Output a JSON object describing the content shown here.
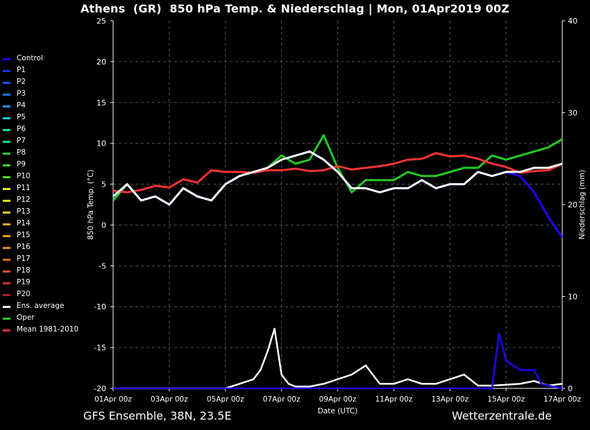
{
  "title": "Athens  (GR)  850 hPa Temp. & Niederschlag | Mon, 01Apr2019 00Z",
  "footer": {
    "left": "GFS Ensemble, 38N, 23.5E",
    "right": "Wetterzentrale.de"
  },
  "colors": {
    "control": "#2200ff",
    "ens_average": "#ffffff",
    "oper": "#22cc22",
    "mean_1981_2010": "#ff3333",
    "grid": "#555555",
    "axis": "#ffffff"
  },
  "chart_data": {
    "type": "line",
    "title": "Athens  (GR)  850 hPa Temp. & Niederschlag | Mon, 01Apr2019 00Z",
    "xlabel": "Date (UTC)",
    "ylabel": "850 hPa Temp. (°C)",
    "y2label": "Niederschlag (mm)",
    "ylim": [
      -20,
      25
    ],
    "y2lim": [
      0,
      40
    ],
    "yticks": [
      -20,
      -15,
      -10,
      -5,
      0,
      5,
      10,
      15,
      20,
      25
    ],
    "y2ticks": [
      0,
      10,
      20,
      30,
      40
    ],
    "xlim_days": [
      0,
      16
    ],
    "x_unit": "days since 01Apr 00z",
    "xticks": [
      {
        "day": 0,
        "label": "01Apr 00z"
      },
      {
        "day": 2,
        "label": "03Apr 00z"
      },
      {
        "day": 4,
        "label": "05Apr 00z"
      },
      {
        "day": 6,
        "label": "07Apr 00z"
      },
      {
        "day": 8,
        "label": "09Apr 00z"
      },
      {
        "day": 10,
        "label": "11Apr 00z"
      },
      {
        "day": 12,
        "label": "13Apr 00z"
      },
      {
        "day": 14,
        "label": "15Apr 00z"
      },
      {
        "day": 16,
        "label": "17Apr 00z"
      }
    ],
    "grid": true,
    "legend_position": "left",
    "legend": [
      {
        "name": "Control",
        "color": "#2200ff"
      },
      {
        "name": "P1",
        "color": "#1133ff"
      },
      {
        "name": "P2",
        "color": "#1155ff"
      },
      {
        "name": "P3",
        "color": "#1177ff"
      },
      {
        "name": "P4",
        "color": "#1199ff"
      },
      {
        "name": "P5",
        "color": "#11ccee"
      },
      {
        "name": "P6",
        "color": "#11ddaa"
      },
      {
        "name": "P7",
        "color": "#11dd77"
      },
      {
        "name": "P8",
        "color": "#22cc44"
      },
      {
        "name": "P9",
        "color": "#33dd22"
      },
      {
        "name": "P10",
        "color": "#55dd11"
      },
      {
        "name": "P11",
        "color": "#eeee11"
      },
      {
        "name": "P12",
        "color": "#eedd22"
      },
      {
        "name": "P13",
        "color": "#eecc22"
      },
      {
        "name": "P14",
        "color": "#eeaa22"
      },
      {
        "name": "P15",
        "color": "#ee9911"
      },
      {
        "name": "P16",
        "color": "#ee8822"
      },
      {
        "name": "P17",
        "color": "#dd6611"
      },
      {
        "name": "P18",
        "color": "#dd5522"
      },
      {
        "name": "P19",
        "color": "#cc3322"
      },
      {
        "name": "P20",
        "color": "#aa2222"
      },
      {
        "name": "Ens. average",
        "color": "#ffffff"
      },
      {
        "name": "Oper",
        "color": "#22cc22"
      },
      {
        "name": "Mean 1981-2010",
        "color": "#ff3333"
      }
    ],
    "series": [
      {
        "name": "Ens. average",
        "x": [
          0,
          0.5,
          1,
          1.5,
          2,
          2.5,
          3,
          3.5,
          4,
          4.5,
          5,
          5.5,
          6,
          6.5,
          7,
          7.5,
          8,
          8.5,
          9,
          9.5,
          10,
          10.5,
          11,
          11.5,
          12,
          12.5,
          13,
          13.5,
          14,
          14.5,
          15,
          15.5,
          16
        ],
        "values": [
          3.5,
          5.0,
          3.0,
          3.5,
          2.5,
          4.5,
          3.5,
          3.0,
          5.0,
          6.0,
          6.5,
          7.0,
          8.0,
          8.5,
          9.0,
          8.0,
          6.5,
          4.5,
          4.5,
          4.0,
          4.5,
          4.5,
          5.5,
          4.5,
          5.0,
          5.0,
          6.5,
          6.0,
          6.5,
          6.5,
          7.0,
          7.0,
          7.5
        ]
      },
      {
        "name": "Oper",
        "x": [
          0,
          0.5,
          1,
          1.5,
          2,
          2.5,
          3,
          3.5,
          4,
          4.5,
          5,
          5.5,
          6,
          6.5,
          7,
          7.5,
          8,
          8.5,
          9,
          9.5,
          10,
          10.5,
          11,
          11.5,
          12,
          12.5,
          13,
          13.5,
          14,
          14.5,
          15,
          15.5,
          16
        ],
        "values": [
          3.0,
          5.0,
          3.0,
          3.5,
          2.5,
          4.5,
          3.5,
          3.0,
          5.0,
          6.0,
          6.5,
          7.0,
          8.5,
          7.5,
          8.0,
          11.0,
          7.0,
          4.0,
          5.5,
          5.5,
          5.5,
          6.5,
          6.0,
          6.0,
          6.5,
          7.0,
          7.0,
          8.5,
          8.0,
          8.5,
          9.0,
          9.5,
          10.5
        ]
      },
      {
        "name": "Mean 1981-2010",
        "x": [
          0,
          0.5,
          1,
          1.5,
          2,
          2.5,
          3,
          3.5,
          4,
          4.5,
          5,
          5.5,
          6,
          6.5,
          7,
          7.5,
          8,
          8.5,
          9,
          9.5,
          10,
          10.5,
          11,
          11.5,
          12,
          12.5,
          13,
          13.5,
          14,
          14.5,
          15,
          15.5,
          16
        ],
        "values": [
          4.2,
          4.0,
          4.3,
          4.8,
          4.6,
          5.6,
          5.2,
          6.7,
          6.5,
          6.5,
          6.4,
          6.7,
          6.7,
          6.9,
          6.6,
          6.7,
          7.2,
          6.8,
          7.0,
          7.2,
          7.5,
          8.0,
          8.1,
          8.8,
          8.4,
          8.5,
          8.1,
          7.5,
          7.1,
          6.4,
          6.6,
          6.7,
          7.5
        ]
      },
      {
        "name": "Control",
        "x": [
          0,
          0.5,
          1,
          1.5,
          2,
          2.5,
          3,
          3.5,
          4,
          4.5,
          5,
          5.5,
          6,
          6.5,
          7,
          7.5,
          8,
          8.5,
          9,
          9.5,
          10,
          10.5,
          11,
          11.5,
          12,
          12.5,
          13,
          13.5,
          14,
          14.5,
          15,
          15.5,
          16
        ],
        "values": [
          3.5,
          5.0,
          3.0,
          3.5,
          2.5,
          4.5,
          3.5,
          3.0,
          5.0,
          6.0,
          6.5,
          7.0,
          8.0,
          8.5,
          9.0,
          8.0,
          6.5,
          4.5,
          4.5,
          4.0,
          4.5,
          4.5,
          5.5,
          4.5,
          5.0,
          5.0,
          6.5,
          6.0,
          6.5,
          6.0,
          4.0,
          1.0,
          -1.5
        ]
      }
    ],
    "precip_series": [
      {
        "name": "Ens. average",
        "x": [
          0,
          1,
          2,
          3,
          4,
          4.5,
          5,
          5.25,
          5.5,
          5.75,
          6,
          6.25,
          6.5,
          7,
          7.5,
          8,
          8.5,
          9,
          9.5,
          10,
          10.5,
          11,
          11.5,
          12,
          12.5,
          13,
          13.5,
          14,
          14.5,
          15,
          15.5,
          16
        ],
        "values": [
          0,
          0,
          0,
          0,
          0,
          0.5,
          1,
          2,
          4,
          6.5,
          1.5,
          0.5,
          0.2,
          0.2,
          0.5,
          1,
          1.5,
          2.5,
          0.5,
          0.5,
          1,
          0.5,
          0.5,
          1,
          1.5,
          0.3,
          0.3,
          0.4,
          0.5,
          0.8,
          0.3,
          0.5
        ]
      },
      {
        "name": "Control",
        "x": [
          0,
          1,
          2,
          3,
          4,
          5,
          6,
          7,
          8,
          9,
          10,
          11,
          12,
          13,
          13.5,
          13.75,
          14,
          14.5,
          15,
          15.25,
          15.5,
          16
        ],
        "values": [
          0,
          0,
          0,
          0,
          0,
          0,
          0,
          0,
          0,
          0,
          0,
          0,
          0,
          0,
          0,
          6,
          3,
          2,
          2,
          0.5,
          0.3,
          0
        ]
      }
    ]
  }
}
